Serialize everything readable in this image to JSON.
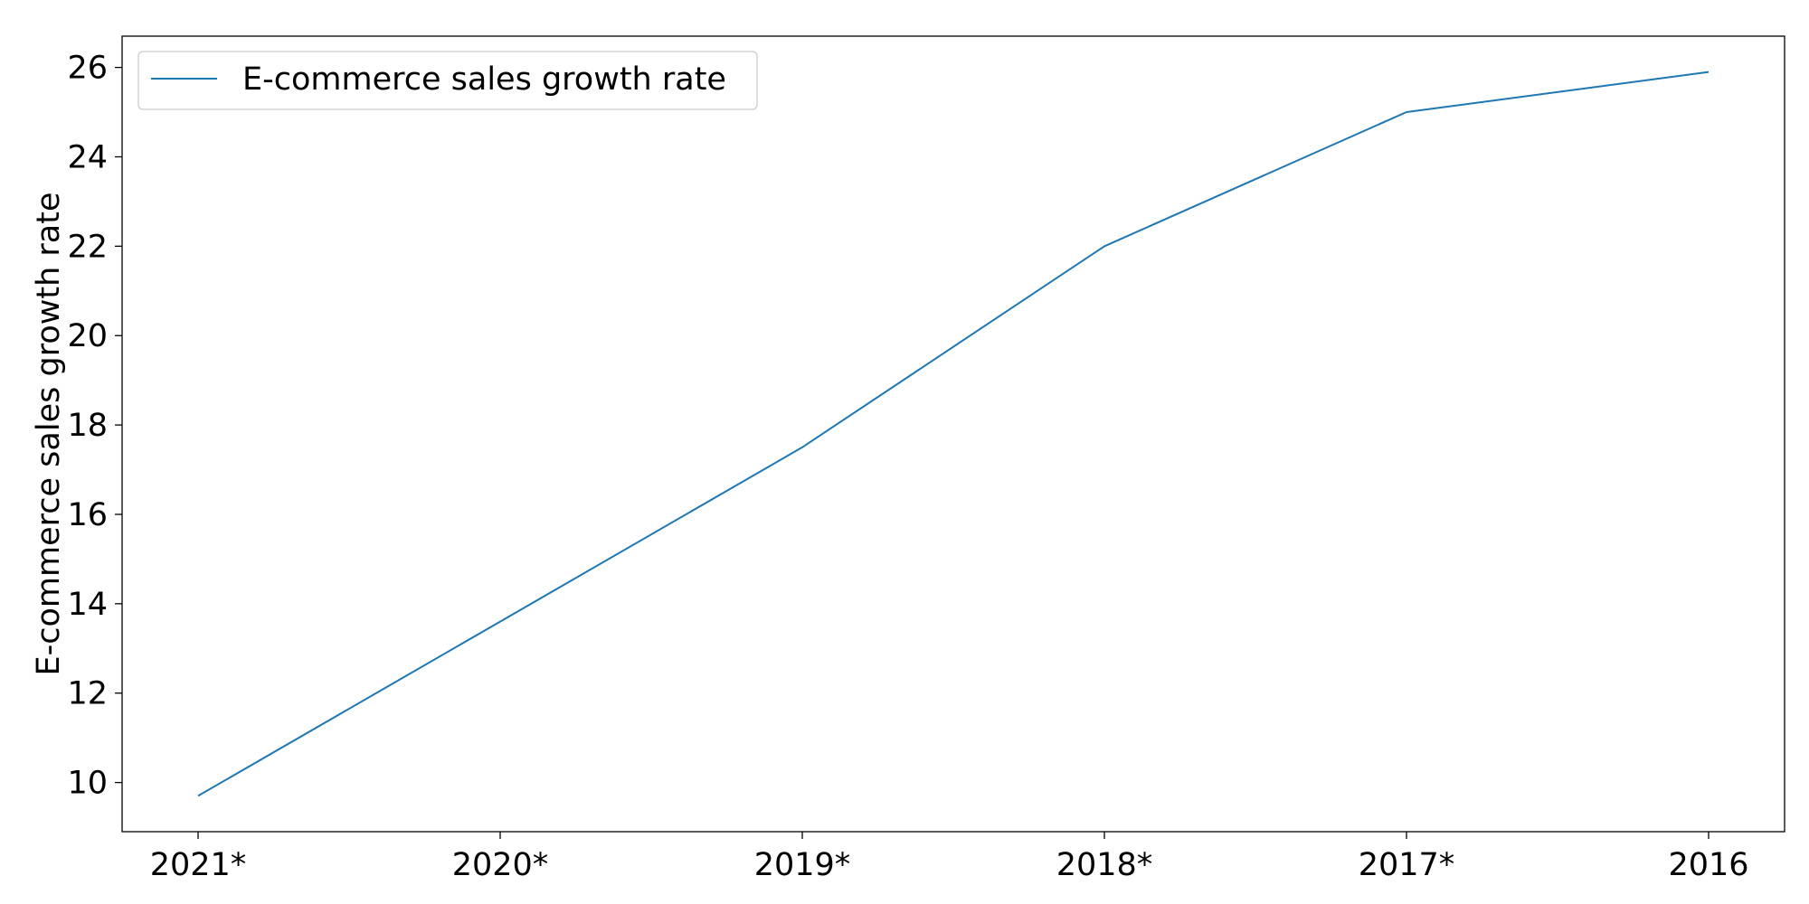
{
  "chart_data": {
    "type": "line",
    "categories": [
      "2021*",
      "2020*",
      "2019*",
      "2018*",
      "2017*",
      "2016"
    ],
    "series": [
      {
        "name": "E-commerce sales growth rate",
        "values": [
          9.7,
          13.6,
          17.5,
          22.0,
          25.0,
          25.9
        ],
        "color": "#1f77b4"
      }
    ],
    "title": "",
    "xlabel": "",
    "ylabel": "E-commerce sales growth rate",
    "ylim": [
      8.9,
      26.7
    ],
    "yticks": [
      10,
      12,
      14,
      16,
      18,
      20,
      22,
      24,
      26
    ],
    "grid": false,
    "legend_position": "upper-left"
  }
}
